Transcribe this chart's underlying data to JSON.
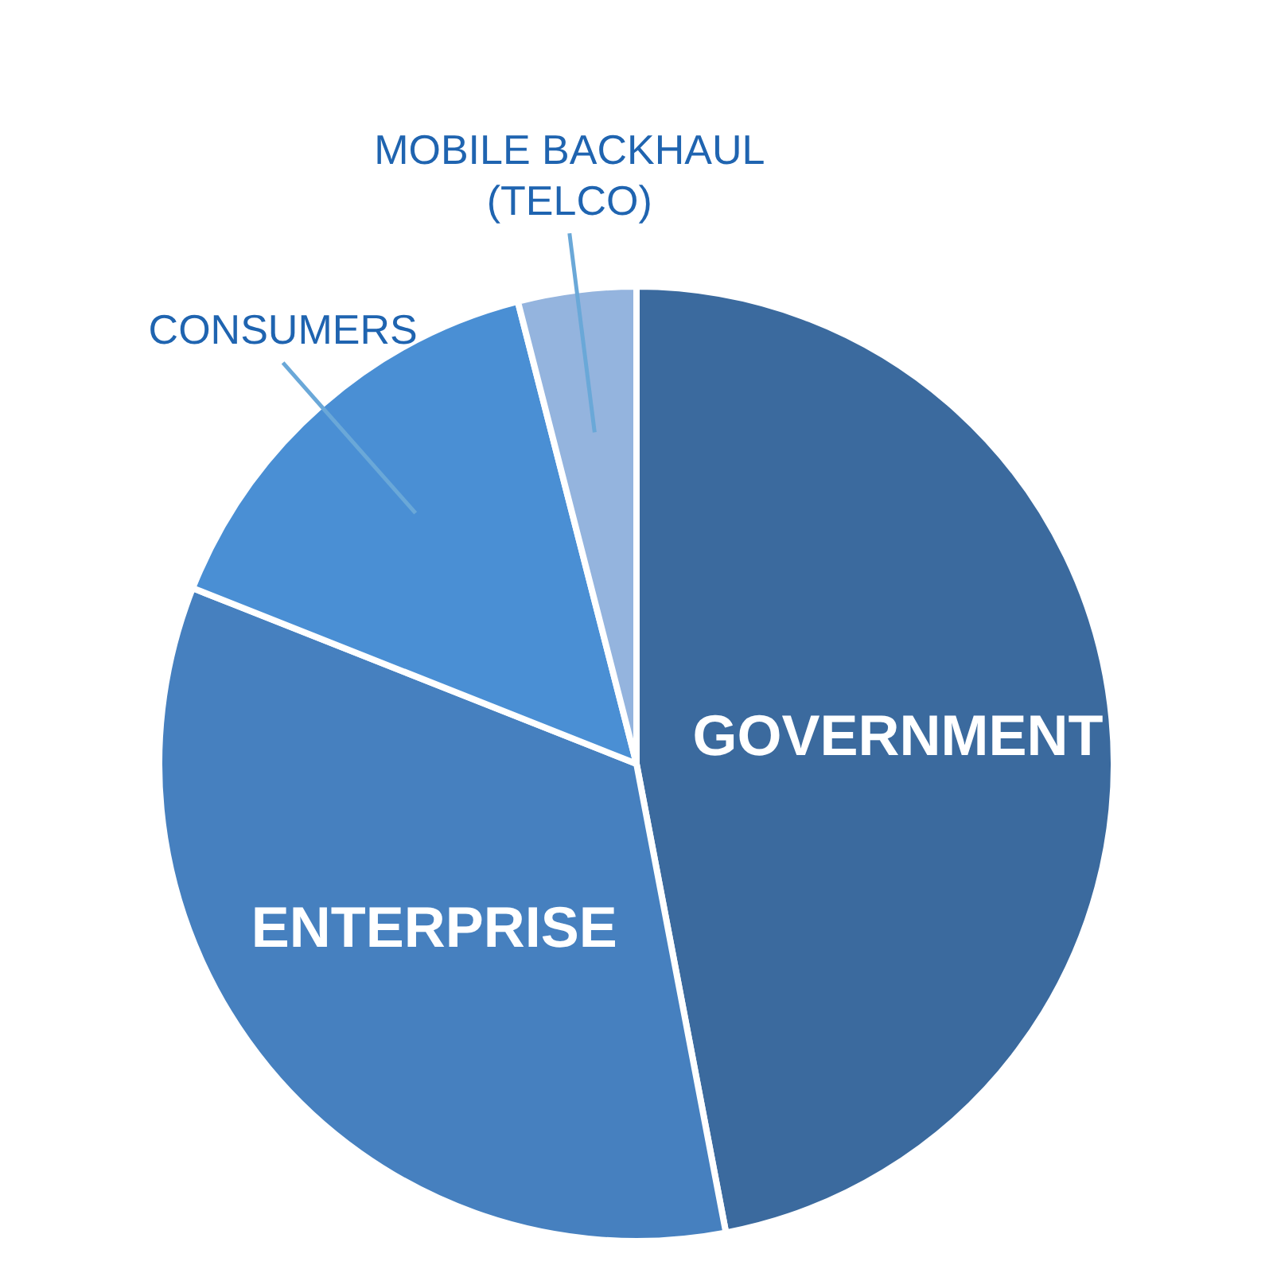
{
  "chart_data": {
    "type": "pie",
    "categories": [
      "GOVERNMENT",
      "ENTERPRISE",
      "CONSUMERS",
      "MOBILE BACKHAUL (TELCO)"
    ],
    "values": [
      47,
      34,
      15,
      4
    ],
    "colors": [
      "#3b6a9e",
      "#4680bf",
      "#4a8fd4",
      "#94b4de"
    ]
  }
}
